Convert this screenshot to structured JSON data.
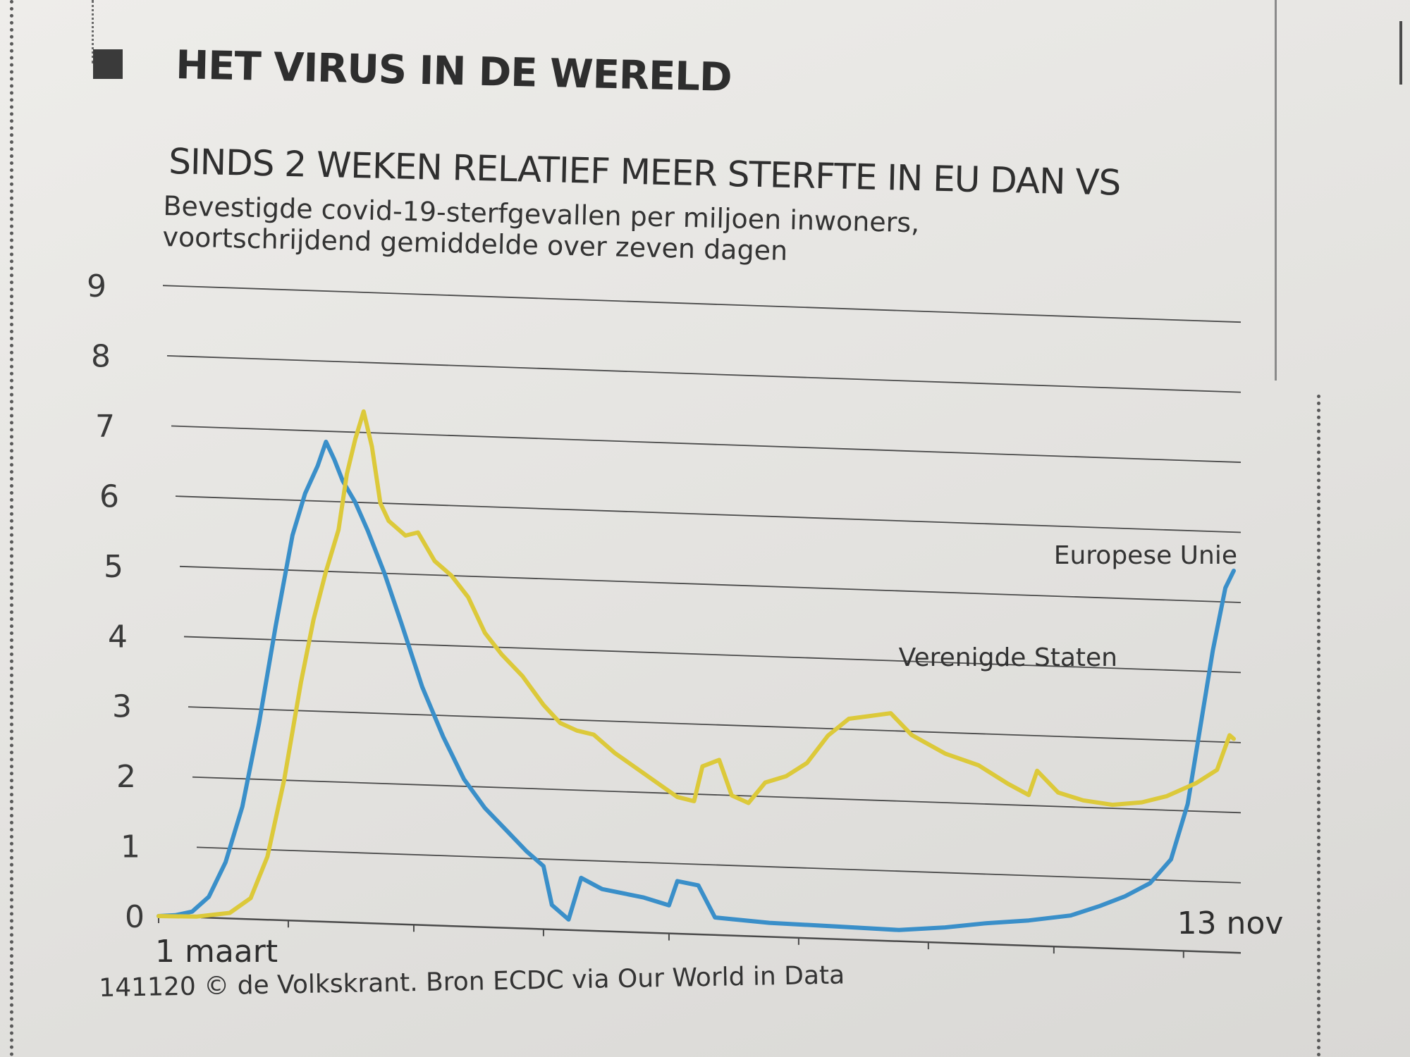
{
  "header": {
    "kicker": "HET VIRUS IN DE WERELD",
    "title": "SINDS 2 WEKEN RELATIEF MEER STERFTE IN EU DAN VS",
    "subtitle": "Bevestigde covid-19-sterfgevallen per miljoen inwoners, voortschrijdend gemiddelde over zeven dagen"
  },
  "footer": {
    "source": "141120 © de Volkskrant. Bron ECDC via Our World in Data"
  },
  "chart_data": {
    "type": "line",
    "title": "SINDS 2 WEKEN RELATIEF MEER STERFTE IN EU DAN VS",
    "subtitle": "Bevestigde covid-19-sterfgevallen per miljoen inwoners, voortschrijdend gemiddelde over zeven dagen",
    "x_range": [
      "2020-03-01",
      "2020-11-13"
    ],
    "x_tick_labels": [
      {
        "date": "2020-03-01",
        "label": "1 maart"
      },
      {
        "date": "2020-11-13",
        "label": "13 nov"
      }
    ],
    "ylim": [
      0,
      9
    ],
    "yticks": [
      0,
      1,
      2,
      3,
      4,
      5,
      6,
      7,
      8,
      9
    ],
    "grid": true,
    "series": [
      {
        "name": "Europese Unie",
        "color": "#3a8fc9",
        "points": [
          [
            "2020-03-01",
            0.0
          ],
          [
            "2020-03-05",
            0.02
          ],
          [
            "2020-03-09",
            0.08
          ],
          [
            "2020-03-13",
            0.3
          ],
          [
            "2020-03-17",
            0.8
          ],
          [
            "2020-03-21",
            1.6
          ],
          [
            "2020-03-25",
            2.8
          ],
          [
            "2020-03-29",
            4.2
          ],
          [
            "2020-04-02",
            5.5
          ],
          [
            "2020-04-05",
            6.1
          ],
          [
            "2020-04-08",
            6.5
          ],
          [
            "2020-04-10",
            6.85
          ],
          [
            "2020-04-12",
            6.6
          ],
          [
            "2020-04-14",
            6.3
          ],
          [
            "2020-04-17",
            6.0
          ],
          [
            "2020-04-20",
            5.6
          ],
          [
            "2020-04-24",
            5.0
          ],
          [
            "2020-04-28",
            4.3
          ],
          [
            "2020-05-03",
            3.4
          ],
          [
            "2020-05-08",
            2.7
          ],
          [
            "2020-05-13",
            2.1
          ],
          [
            "2020-05-18",
            1.7
          ],
          [
            "2020-05-23",
            1.4
          ],
          [
            "2020-05-28",
            1.1
          ],
          [
            "2020-06-01",
            0.9
          ],
          [
            "2020-06-03",
            0.35
          ],
          [
            "2020-06-07",
            0.15
          ],
          [
            "2020-06-10",
            0.75
          ],
          [
            "2020-06-15",
            0.6
          ],
          [
            "2020-06-25",
            0.5
          ],
          [
            "2020-07-01",
            0.4
          ],
          [
            "2020-07-03",
            0.75
          ],
          [
            "2020-07-08",
            0.7
          ],
          [
            "2020-07-12",
            0.25
          ],
          [
            "2020-07-25",
            0.2
          ],
          [
            "2020-08-10",
            0.18
          ],
          [
            "2020-08-25",
            0.16
          ],
          [
            "2020-09-05",
            0.22
          ],
          [
            "2020-09-15",
            0.3
          ],
          [
            "2020-09-25",
            0.36
          ],
          [
            "2020-10-05",
            0.45
          ],
          [
            "2020-10-12",
            0.6
          ],
          [
            "2020-10-18",
            0.75
          ],
          [
            "2020-10-24",
            0.95
          ],
          [
            "2020-10-29",
            1.3
          ],
          [
            "2020-11-02",
            2.1
          ],
          [
            "2020-11-05",
            3.2
          ],
          [
            "2020-11-08",
            4.3
          ],
          [
            "2020-11-11",
            5.2
          ],
          [
            "2020-11-13",
            5.45
          ]
        ]
      },
      {
        "name": "Verenigde Staten",
        "color": "#dcc93a",
        "points": [
          [
            "2020-03-01",
            0.0
          ],
          [
            "2020-03-10",
            0.01
          ],
          [
            "2020-03-18",
            0.08
          ],
          [
            "2020-03-23",
            0.3
          ],
          [
            "2020-03-27",
            0.9
          ],
          [
            "2020-03-31",
            2.0
          ],
          [
            "2020-04-04",
            3.4
          ],
          [
            "2020-04-07",
            4.3
          ],
          [
            "2020-04-10",
            5.0
          ],
          [
            "2020-04-13",
            5.6
          ],
          [
            "2020-04-15",
            6.4
          ],
          [
            "2020-04-17",
            6.9
          ],
          [
            "2020-04-19",
            7.3
          ],
          [
            "2020-04-21",
            6.8
          ],
          [
            "2020-04-23",
            6.0
          ],
          [
            "2020-04-25",
            5.75
          ],
          [
            "2020-04-29",
            5.55
          ],
          [
            "2020-05-02",
            5.6
          ],
          [
            "2020-05-06",
            5.2
          ],
          [
            "2020-05-10",
            5.0
          ],
          [
            "2020-05-14",
            4.7
          ],
          [
            "2020-05-18",
            4.2
          ],
          [
            "2020-05-22",
            3.9
          ],
          [
            "2020-05-27",
            3.6
          ],
          [
            "2020-06-01",
            3.2
          ],
          [
            "2020-06-05",
            2.95
          ],
          [
            "2020-06-09",
            2.85
          ],
          [
            "2020-06-13",
            2.8
          ],
          [
            "2020-06-18",
            2.55
          ],
          [
            "2020-06-23",
            2.35
          ],
          [
            "2020-06-28",
            2.15
          ],
          [
            "2020-07-03",
            1.95
          ],
          [
            "2020-07-07",
            1.9
          ],
          [
            "2020-07-09",
            2.4
          ],
          [
            "2020-07-13",
            2.5
          ],
          [
            "2020-07-16",
            2.0
          ],
          [
            "2020-07-20",
            1.9
          ],
          [
            "2020-07-24",
            2.2
          ],
          [
            "2020-07-29",
            2.3
          ],
          [
            "2020-08-03",
            2.5
          ],
          [
            "2020-08-08",
            2.9
          ],
          [
            "2020-08-13",
            3.15
          ],
          [
            "2020-08-18",
            3.2
          ],
          [
            "2020-08-23",
            3.25
          ],
          [
            "2020-08-28",
            2.95
          ],
          [
            "2020-09-05",
            2.7
          ],
          [
            "2020-09-13",
            2.55
          ],
          [
            "2020-09-20",
            2.3
          ],
          [
            "2020-09-25",
            2.15
          ],
          [
            "2020-09-27",
            2.5
          ],
          [
            "2020-10-02",
            2.2
          ],
          [
            "2020-10-08",
            2.1
          ],
          [
            "2020-10-15",
            2.05
          ],
          [
            "2020-10-22",
            2.1
          ],
          [
            "2020-10-28",
            2.2
          ],
          [
            "2020-11-04",
            2.4
          ],
          [
            "2020-11-09",
            2.6
          ],
          [
            "2020-11-12",
            3.1
          ],
          [
            "2020-11-13",
            3.05
          ]
        ]
      }
    ]
  }
}
